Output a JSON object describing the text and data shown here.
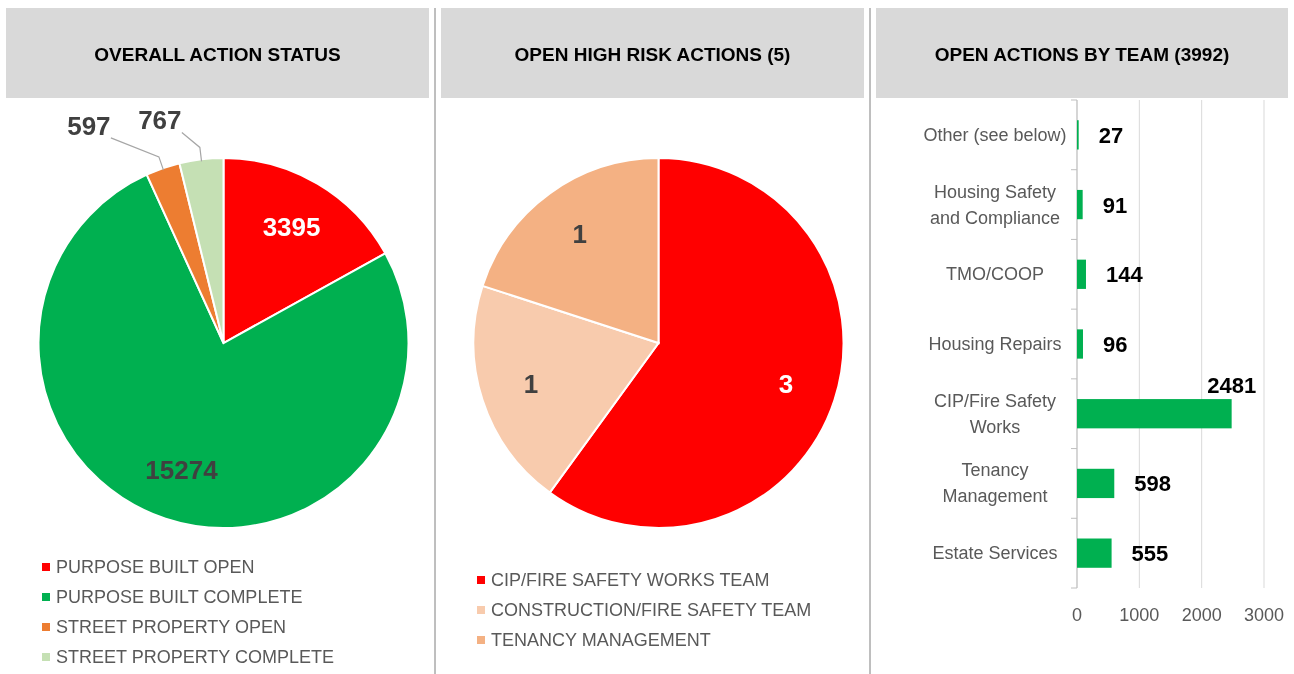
{
  "chart_data": [
    {
      "type": "pie",
      "title": "OVERALL ACTION STATUS",
      "categories": [
        "PURPOSE BUILT OPEN",
        "PURPOSE BUILT COMPLETE",
        "STREET PROPERTY OPEN",
        "STREET PROPERTY COMPLETE"
      ],
      "values": [
        3395,
        15274,
        597,
        767
      ],
      "colors": [
        "#ff0000",
        "#00b050",
        "#ed7d31",
        "#c5e0b4"
      ],
      "data_labels": true,
      "legend": "bottom"
    },
    {
      "type": "pie",
      "title": "OPEN HIGH RISK ACTIONS (5)",
      "categories": [
        "CIP/FIRE SAFETY WORKS TEAM",
        "CONSTRUCTION/FIRE SAFETY TEAM",
        "TENANCY MANAGEMENT"
      ],
      "values": [
        3,
        1,
        1
      ],
      "colors": [
        "#ff0000",
        "#f8cbad",
        "#f4b183"
      ],
      "data_labels": true,
      "legend": "bottom"
    },
    {
      "type": "bar",
      "orientation": "horizontal",
      "title": "OPEN ACTIONS BY TEAM (3992)",
      "categories": [
        "Other (see below)",
        "Housing Safety and Compliance",
        "TMO/COOP",
        "Housing Repairs",
        "CIP/Fire Safety Works",
        "Tenancy Management",
        "Estate Services"
      ],
      "values": [
        27,
        91,
        144,
        96,
        2481,
        598,
        555
      ],
      "color": "#00b050",
      "xlim": [
        0,
        3000
      ],
      "xticks": [
        0,
        1000,
        2000,
        3000
      ],
      "grid": "x",
      "data_labels": true
    }
  ]
}
